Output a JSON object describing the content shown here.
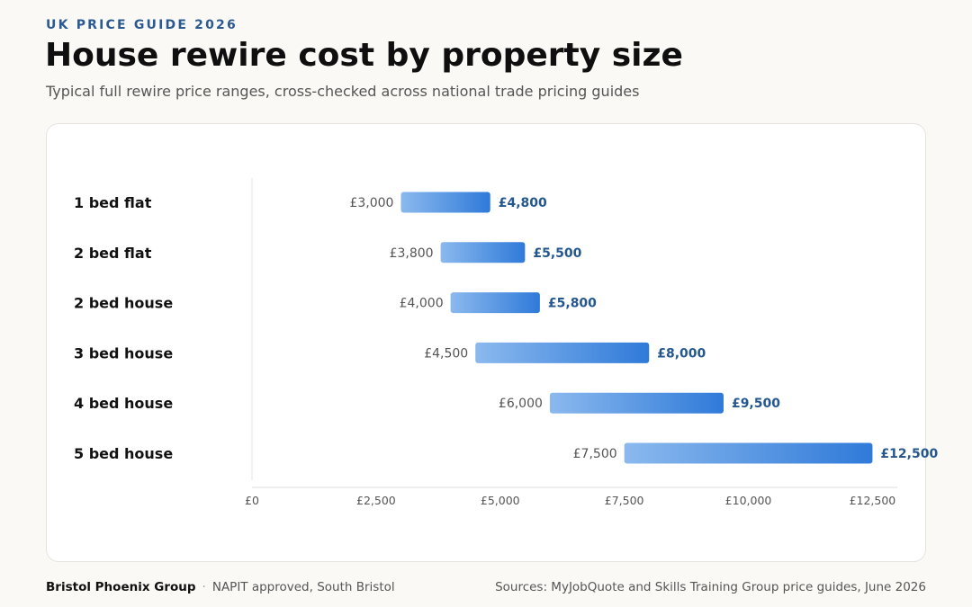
{
  "header": {
    "eyebrow": "UK PRICE GUIDE 2026",
    "title": "House rewire cost by property size",
    "subtitle": "Typical full rewire price ranges, cross-checked across national trade pricing guides"
  },
  "footer": {
    "brand": "Bristol Phoenix Group",
    "separator": "·",
    "tagline": "NAPIT approved, South Bristol",
    "sources": "Sources: MyJobQuote and Skills Training Group price guides, June 2026"
  },
  "colors": {
    "bar_start": "#8bb9ee",
    "bar_end": "#2f7ad9",
    "high_label": "#24578f",
    "low_label": "#555555"
  },
  "chart_data": {
    "type": "bar",
    "orientation": "horizontal",
    "range": true,
    "title": "House rewire cost by property size",
    "xlabel": "",
    "ylabel": "",
    "xlim": [
      0,
      13000
    ],
    "x_ticks": [
      0,
      2500,
      5000,
      7500,
      10000,
      12500
    ],
    "x_tick_labels": [
      "£0",
      "£2,500",
      "£5,000",
      "£7,500",
      "£10,000",
      "£12,500"
    ],
    "grid": false,
    "categories": [
      "1 bed flat",
      "2 bed flat",
      "2 bed house",
      "3 bed house",
      "4 bed house",
      "5 bed house"
    ],
    "low": [
      3000,
      3800,
      4000,
      4500,
      6000,
      7500
    ],
    "high": [
      4800,
      5500,
      5800,
      8000,
      9500,
      12500
    ],
    "low_labels": [
      "£3,000",
      "£3,800",
      "£4,000",
      "£4,500",
      "£6,000",
      "£7,500"
    ],
    "high_labels": [
      "£4,800",
      "£5,500",
      "£5,800",
      "£8,000",
      "£9,500",
      "£12,500"
    ]
  }
}
